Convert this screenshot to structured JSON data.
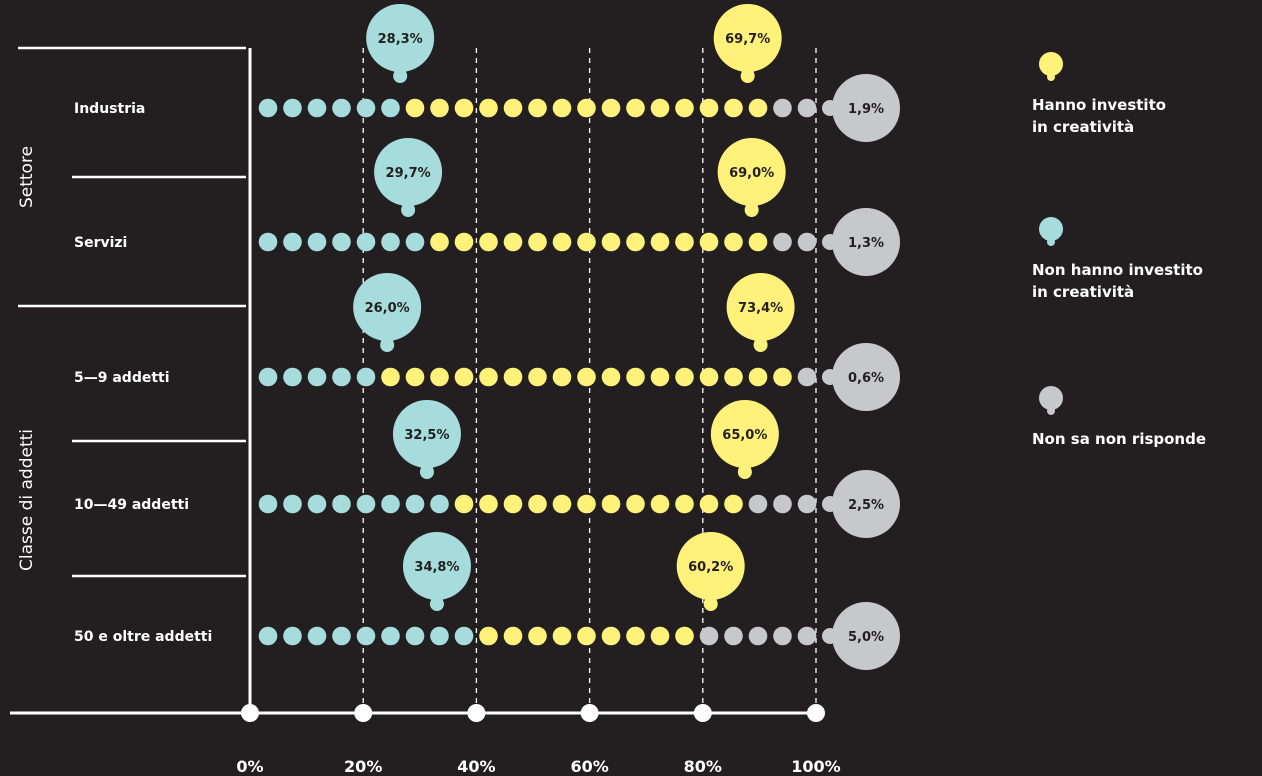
{
  "chart_data": {
    "type": "dot-strip",
    "title": "",
    "xlabel": "",
    "ylabel": "",
    "xlim": [
      0,
      100
    ],
    "x_ticks": [
      "0%",
      "20%",
      "40%",
      "60%",
      "80%",
      "100%"
    ],
    "groups": [
      {
        "label": "Settore",
        "rows": [
          0,
          1
        ]
      },
      {
        "label": "Classe di addetti",
        "rows": [
          2,
          3,
          4
        ]
      }
    ],
    "categories": [
      "Industria",
      "Servizi",
      "5—9 addetti",
      "10—49 addetti",
      "50 e oltre addetti"
    ],
    "series": [
      {
        "name": "Non hanno investito in creatività",
        "color": "#a6dcdc",
        "values": [
          28.3,
          29.7,
          26.0,
          32.5,
          34.8
        ],
        "labels": [
          "28,3%",
          "29,7%",
          "26,0%",
          "32,5%",
          "34,8%"
        ]
      },
      {
        "name": "Hanno investito in creatività",
        "color": "#fff27a",
        "values": [
          69.7,
          69.0,
          73.4,
          65.0,
          60.2
        ],
        "labels": [
          "69,7%",
          "69,0%",
          "73,4%",
          "65,0%",
          "60,2%"
        ]
      },
      {
        "name": "Non sa non risponde",
        "color": "#c7c8ca",
        "values": [
          1.9,
          1.3,
          0.6,
          2.5,
          5.0
        ],
        "labels": [
          "1,9%",
          "1,3%",
          "0,6%",
          "2,5%",
          "5,0%"
        ]
      }
    ],
    "dots_per_row": [
      [
        6,
        15,
        2
      ],
      [
        7,
        14,
        2
      ],
      [
        5,
        17,
        1
      ],
      [
        8,
        12,
        3
      ],
      [
        9,
        9,
        5
      ]
    ],
    "legend": {
      "placement": "right",
      "items": [
        {
          "lines": [
            "Hanno investito",
            "in creatività"
          ],
          "color": "#fff27a"
        },
        {
          "lines": [
            "Non hanno investito",
            "in creatività"
          ],
          "color": "#a6dcdc"
        },
        {
          "lines": [
            "Non sa non risponde"
          ],
          "color": "#c7c8ca"
        }
      ]
    },
    "grid": true
  }
}
